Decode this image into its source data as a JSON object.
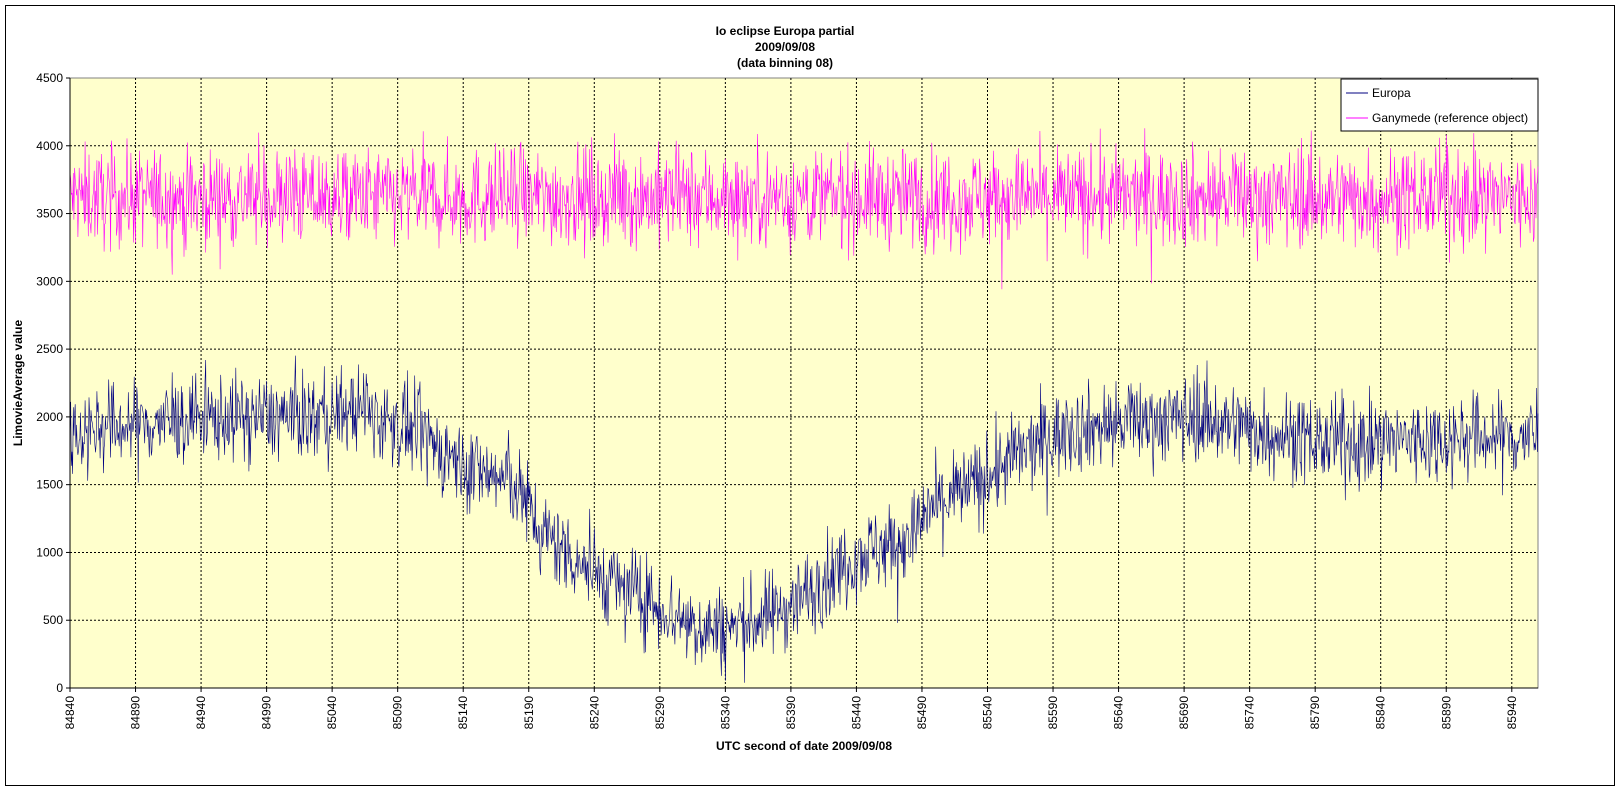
{
  "chart_data": {
    "type": "line",
    "title_lines": [
      "Io eclipse Europa partial",
      "2009/09/08",
      "(data binning 08)"
    ],
    "xlabel": "UTC second  of date 2009/09/08",
    "ylabel": "LimovieAverage value",
    "xlim": [
      84840,
      85960
    ],
    "ylim": [
      0,
      4500
    ],
    "x_ticks": [
      "84840",
      "84890",
      "84940",
      "84990",
      "85040",
      "85090",
      "85140",
      "85190",
      "85240",
      "85290",
      "85340",
      "85390",
      "85440",
      "85490",
      "85540",
      "85590",
      "85640",
      "85690",
      "85740",
      "85790",
      "85840",
      "85890",
      "85940"
    ],
    "y_ticks": [
      "0",
      "500",
      "1000",
      "1500",
      "2000",
      "2500",
      "3000",
      "3500",
      "4000",
      "4500"
    ],
    "grid": true,
    "legend_position": "top-right",
    "plot_background": "#FFFFCC",
    "series": [
      {
        "name": "Europa",
        "color": "#000080",
        "baseline_x": [
          84840,
          84900,
          84960,
          85020,
          85060,
          85100,
          85140,
          85180,
          85200,
          85240,
          85280,
          85320,
          85340,
          85370,
          85400,
          85440,
          85480,
          85500,
          85540,
          85560,
          85600,
          85640,
          85700,
          85800,
          85900,
          85960
        ],
        "baseline_y": [
          1900,
          1950,
          2000,
          2000,
          2050,
          1900,
          1650,
          1500,
          1150,
          850,
          650,
          450,
          430,
          520,
          680,
          980,
          1100,
          1350,
          1550,
          1700,
          1900,
          1950,
          2000,
          1800,
          1850,
          1850
        ],
        "noise_amplitude": 350
      },
      {
        "name": "Ganymede (reference object)",
        "color": "#FF00FF",
        "baseline_x": [
          84840,
          85960
        ],
        "baseline_y": [
          3620,
          3620
        ],
        "noise_amplitude": 400
      }
    ]
  }
}
